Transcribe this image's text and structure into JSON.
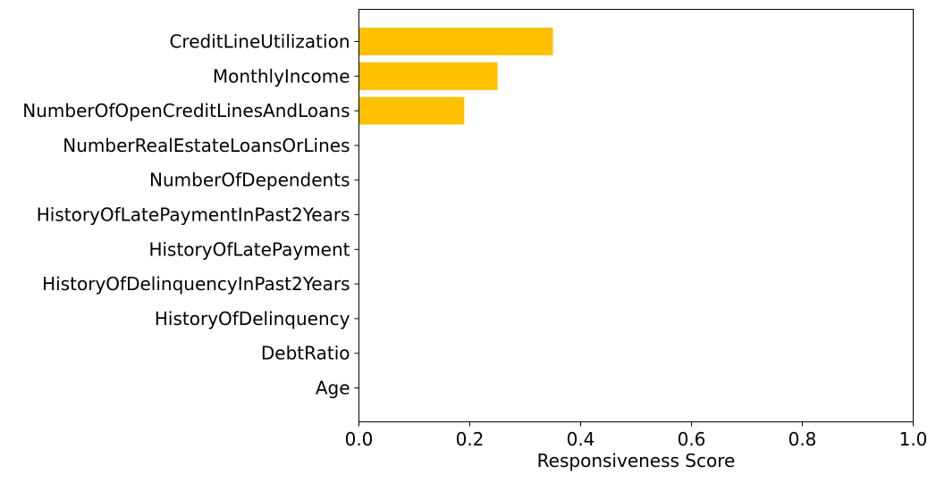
{
  "chart_data": {
    "type": "bar",
    "orientation": "horizontal",
    "categories": [
      "CreditLineUtilization",
      "MonthlyIncome",
      "NumberOfOpenCreditLinesAndLoans",
      "NumberRealEstateLoansOrLines",
      "NumberOfDependents",
      "HistoryOfLatePaymentInPast2Years",
      "HistoryOfLatePayment",
      "HistoryOfDelinquencyInPast2Years",
      "HistoryOfDelinquency",
      "DebtRatio",
      "Age"
    ],
    "values": [
      0.35,
      0.25,
      0.19,
      0,
      0,
      0,
      0,
      0,
      0,
      0,
      0
    ],
    "title": "",
    "xlabel": "Responsiveness Score",
    "ylabel": "",
    "xlim": [
      0.0,
      1.0
    ],
    "xticks": [
      "0.0",
      "0.2",
      "0.4",
      "0.6",
      "0.8",
      "1.0"
    ],
    "grid": false,
    "bar_color": "#ffc000"
  }
}
